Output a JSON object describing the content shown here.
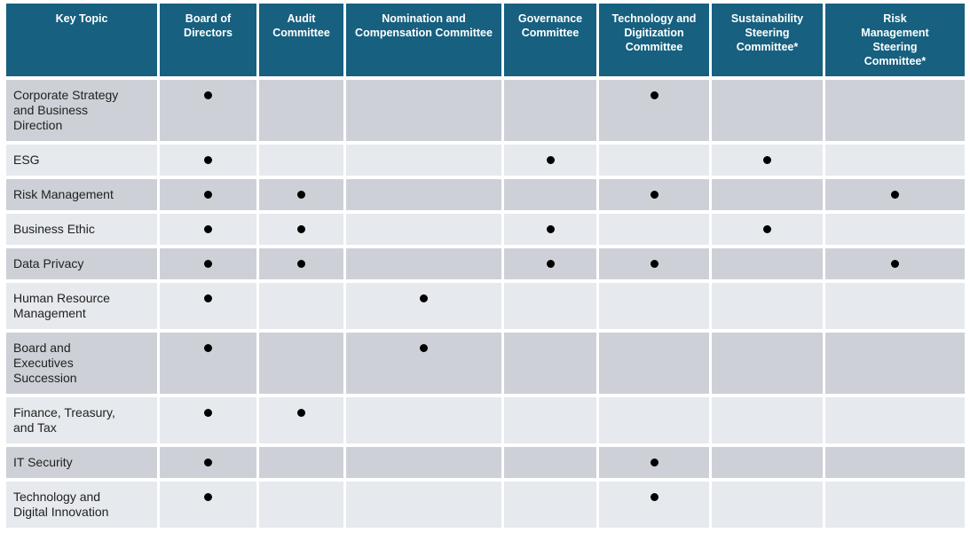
{
  "colors": {
    "header_bg": "#17607F",
    "header_text": "#FFFFFF",
    "row_dark": "#CDD1D7",
    "row_light": "#E6E9ED",
    "bullet": "#000000",
    "body_text": "#212121"
  },
  "table": {
    "columns": [
      "Key Topic",
      "Board of Directors",
      "Audit Committee",
      "Nomination and Compensation Committee",
      "Governance Committee",
      "Technology and Digitization Committee",
      "Sustainability Steering Committee*",
      "Risk Management Steering Committee*"
    ],
    "rows": [
      {
        "topic": "Corporate Strategy and Business Direction",
        "marks": [
          1,
          0,
          0,
          0,
          1,
          0,
          0
        ]
      },
      {
        "topic": "ESG",
        "marks": [
          1,
          0,
          0,
          1,
          0,
          1,
          0
        ]
      },
      {
        "topic": "Risk Management",
        "marks": [
          1,
          1,
          0,
          0,
          1,
          0,
          1
        ]
      },
      {
        "topic": "Business Ethic",
        "marks": [
          1,
          1,
          0,
          1,
          0,
          1,
          0
        ]
      },
      {
        "topic": "Data Privacy",
        "marks": [
          1,
          1,
          0,
          1,
          1,
          0,
          1
        ]
      },
      {
        "topic": "Human Resource Management",
        "marks": [
          1,
          0,
          1,
          0,
          0,
          0,
          0
        ]
      },
      {
        "topic": "Board and Executives Succession",
        "marks": [
          1,
          0,
          1,
          0,
          0,
          0,
          0
        ]
      },
      {
        "topic": "Finance, Treasury, and Tax",
        "marks": [
          1,
          1,
          0,
          0,
          0,
          0,
          0
        ]
      },
      {
        "topic": "IT Security",
        "marks": [
          1,
          0,
          0,
          0,
          1,
          0,
          0
        ]
      },
      {
        "topic": "Technology and Digital Innovation",
        "marks": [
          1,
          0,
          0,
          0,
          1,
          0,
          0
        ]
      }
    ]
  }
}
